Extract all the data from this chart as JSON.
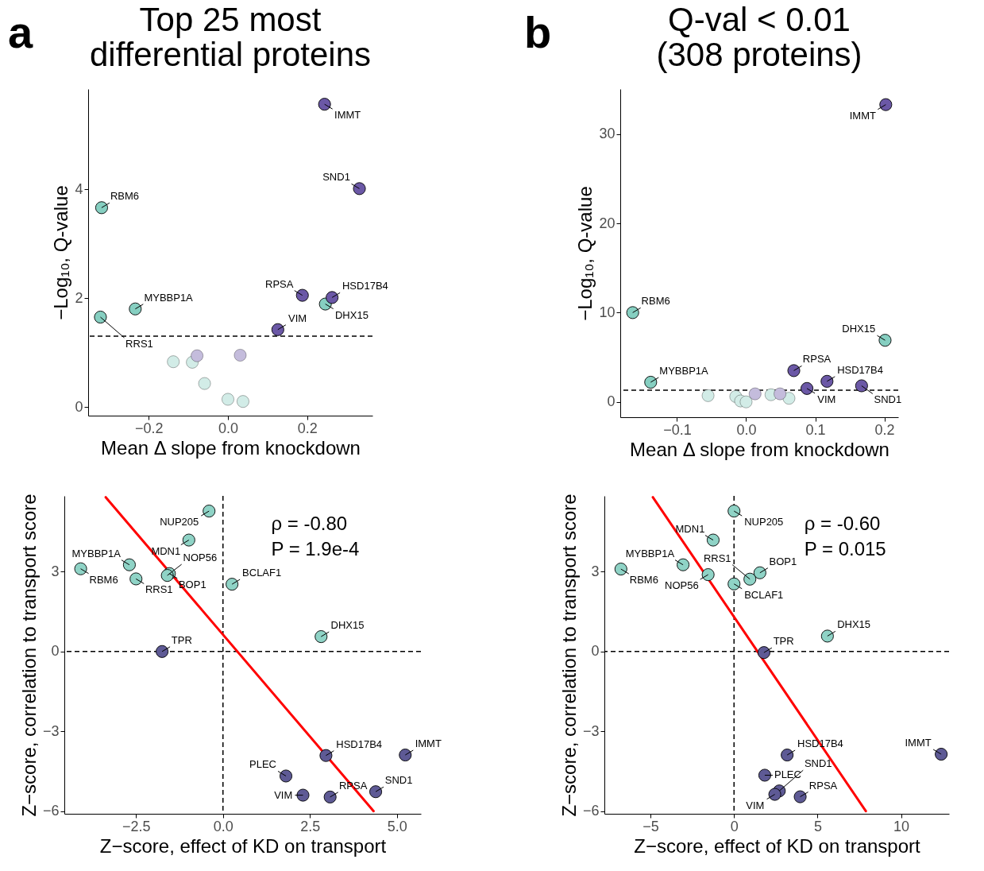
{
  "chart_data": [
    {
      "type": "scatter",
      "title": "Top 25 most\ndifferential proteins",
      "annotations": [
        "a"
      ],
      "xlabel": "Mean Δ slope from knockdown",
      "ylabel": "−Log₁₀, Q-value",
      "xlim": [
        -0.353,
        0.365
      ],
      "ylim": [
        -0.16,
        5.84
      ],
      "xticks": [
        {
          "value": -0.2,
          "label": "−0.2"
        },
        {
          "value": 0,
          "label": "0.0"
        },
        {
          "value": 0.2,
          "label": "0.2"
        }
      ],
      "yticks": [
        0,
        2,
        4
      ],
      "grid": false,
      "marker": "circle",
      "ref_lines": [
        {
          "axis": "y",
          "value": 1.3,
          "line_style": "dashed",
          "color": "#000000"
        }
      ],
      "series": [
        {
          "color": "#86cfc1",
          "x": [
            -0.319,
            -0.234,
            -0.322,
            0.246
          ],
          "values": [
            3.66,
            1.8,
            1.65,
            1.89
          ],
          "value_labels": [
            "RBM6",
            "MYBBP1A",
            "RRS1",
            "DHX15"
          ]
        },
        {
          "color": "#6b58a6",
          "x": [
            0.244,
            0.332,
            0.188,
            0.263,
            0.126
          ],
          "values": [
            5.56,
            4.01,
            2.05,
            2.01,
            1.42
          ],
          "value_labels": [
            "IMMT",
            "SND1",
            "RPSA",
            "HSD17B4",
            "VIM"
          ]
        },
        {
          "color": "#d2ece7",
          "x": [
            -0.138,
            -0.09,
            -0.059,
            0.0,
            0.038
          ],
          "values": [
            0.83,
            0.82,
            0.43,
            0.14,
            0.1
          ]
        },
        {
          "color": "#c4bcdc",
          "x": [
            -0.078,
            0.031
          ],
          "values": [
            0.94,
            0.95
          ]
        }
      ]
    },
    {
      "type": "scatter",
      "title": "Q-val < 0.01\n(308 proteins)",
      "annotations": [
        "b"
      ],
      "xlabel": "Mean Δ slope from knockdown",
      "ylabel": "−Log₁₀, Q-value",
      "xlim": [
        -0.182,
        0.22
      ],
      "ylim": [
        -1.72,
        35.05
      ],
      "xticks": [
        {
          "value": -0.1,
          "label": "−0.1"
        },
        {
          "value": 0,
          "label": "0.0"
        },
        {
          "value": 0.1,
          "label": "0.1"
        },
        {
          "value": 0.2,
          "label": "0.2"
        }
      ],
      "yticks": [
        0,
        10,
        20,
        30
      ],
      "grid": false,
      "marker": "circle",
      "ref_lines": [
        {
          "axis": "y",
          "value": 1.3,
          "line_style": "dashed",
          "color": "#000000"
        }
      ],
      "series": [
        {
          "color": "#86cfc1",
          "x": [
            -0.164,
            -0.138,
            0.201
          ],
          "values": [
            10.0,
            2.2,
            6.9
          ],
          "value_labels": [
            "RBM6",
            "MYBBP1A",
            "DHX15"
          ]
        },
        {
          "color": "#6b58a6",
          "x": [
            0.202,
            0.069,
            0.117,
            0.088,
            0.167
          ],
          "values": [
            33.3,
            3.5,
            2.3,
            1.5,
            1.8
          ],
          "value_labels": [
            "IMMT",
            "RPSA",
            "HSD17B4",
            "VIM",
            "SND1"
          ]
        },
        {
          "color": "#d2ece7",
          "x": [
            -0.055,
            -0.015,
            -0.008,
            0.0,
            0.036,
            0.062
          ],
          "values": [
            0.7,
            0.6,
            0.1,
            0.0,
            0.8,
            0.4
          ]
        },
        {
          "color": "#c4bcdc",
          "x": [
            0.013,
            0.049
          ],
          "values": [
            0.9,
            0.9
          ]
        }
      ]
    },
    {
      "type": "scatter",
      "annotations": [
        "ρ = -0.80",
        "P = 1.9e-4"
      ],
      "xlabel": "Z−score, effect of KD on transport",
      "ylabel": "Z−score, correlation to transport score",
      "xlim": [
        -4.56,
        5.69
      ],
      "ylim": [
        -6.1,
        5.85
      ],
      "xticks": [
        {
          "value": -2.5,
          "label": "−2.5"
        },
        {
          "value": 0,
          "label": "0.0"
        },
        {
          "value": 2.5,
          "label": "2.5"
        },
        {
          "value": 5,
          "label": "5.0"
        }
      ],
      "yticks": [
        -6,
        -3,
        0,
        3
      ],
      "grid": false,
      "marker": "circle",
      "ref_lines": [
        {
          "axis": "x",
          "value": 0,
          "line_style": "dashed",
          "color": "#000000"
        },
        {
          "axis": "y",
          "value": 0,
          "line_style": "dashed",
          "color": "#000000"
        }
      ],
      "series": [
        {
          "color": "#8fd3c6",
          "x": [
            -0.4,
            -0.98,
            -2.69,
            -4.09,
            -2.5,
            -1.54,
            -1.6,
            0.26,
            2.82
          ],
          "values": [
            5.28,
            4.19,
            3.26,
            3.11,
            2.73,
            2.93,
            2.86,
            2.53,
            0.56
          ],
          "value_labels": [
            "NUP205",
            "MDN1",
            "MYBBP1A",
            "RBM6",
            "RRS1",
            "BOP1",
            "NOP56",
            "BCLAF1",
            "DHX15"
          ]
        },
        {
          "color": "#5e5a95",
          "x": [
            -1.75,
            2.96,
            5.24,
            1.81,
            2.3,
            3.08,
            4.39
          ],
          "values": [
            0,
            -3.91,
            -3.89,
            -4.68,
            -5.4,
            -5.47,
            -5.27
          ],
          "value_labels": [
            "TPR",
            "HSD17B4",
            "IMMT",
            "PLEC",
            "VIM",
            "RPSA",
            "SND1"
          ]
        },
        {
          "type": "line",
          "marker": "none",
          "color": "#ff0000",
          "x": [
            -3.37,
            4.33
          ],
          "values": [
            5.8,
            -6.0
          ]
        }
      ]
    },
    {
      "type": "scatter",
      "annotations": [
        "ρ = -0.60",
        "P = 0.015"
      ],
      "xlabel": "Z−score, effect of KD on transport",
      "ylabel": "Z−score, correlation to transport score",
      "xlim": [
        -7.76,
        12.87
      ],
      "ylim": [
        -6.1,
        5.85
      ],
      "xticks": [
        -5,
        0,
        5,
        10
      ],
      "yticks": [
        -6,
        -3,
        0,
        3
      ],
      "grid": false,
      "marker": "circle",
      "ref_lines": [
        {
          "axis": "x",
          "value": 0,
          "line_style": "dashed",
          "color": "#000000"
        },
        {
          "axis": "y",
          "value": 0,
          "line_style": "dashed",
          "color": "#000000"
        }
      ],
      "series": [
        {
          "color": "#8fd3c6",
          "x": [
            0.0,
            -1.25,
            -3.05,
            -6.77,
            -1.55,
            0.0,
            1.55,
            0.95,
            5.59
          ],
          "values": [
            5.28,
            4.19,
            3.26,
            3.1,
            2.89,
            2.54,
            2.96,
            2.72,
            0.58
          ],
          "value_labels": [
            "NUP205",
            "MDN1",
            "MYBBP1A",
            "RBM6",
            "NOP56",
            "BCLAF1",
            "BOP1",
            "RRS1",
            "DHX15"
          ]
        },
        {
          "color": "#5e5a95",
          "x": [
            1.79,
            3.18,
            12.4,
            1.84,
            2.71,
            2.44,
            3.96
          ],
          "values": [
            -0.04,
            -3.89,
            -3.86,
            -4.65,
            -5.24,
            -5.37,
            -5.46
          ],
          "value_labels": [
            "TPR",
            "HSD17B4",
            "IMMT",
            "PLEC",
            "SND1",
            "VIM",
            "RPSA"
          ]
        },
        {
          "type": "line",
          "marker": "none",
          "color": "#ff0000",
          "x": [
            -4.86,
            7.89
          ],
          "values": [
            5.8,
            -6.0
          ]
        }
      ]
    }
  ]
}
